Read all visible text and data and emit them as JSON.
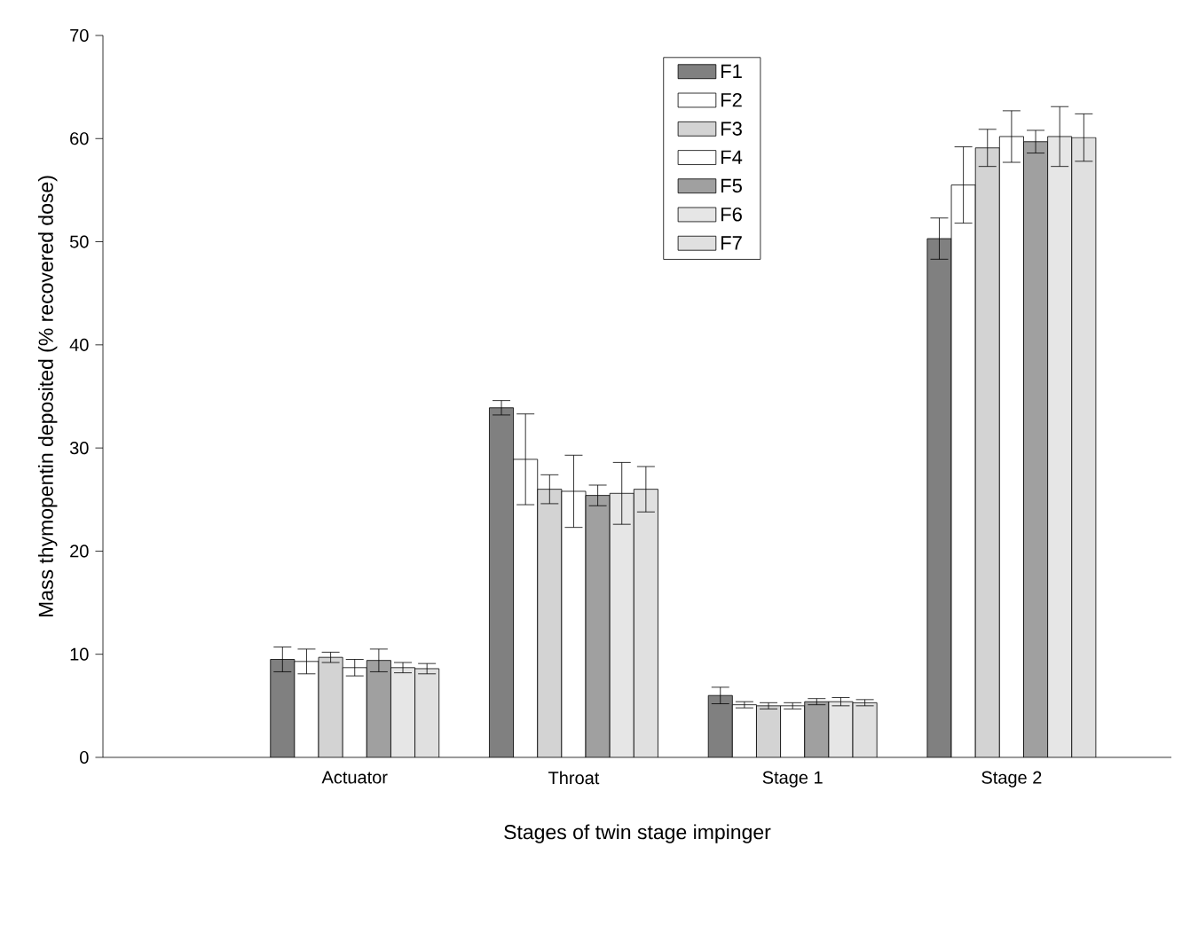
{
  "chart_data": {
    "type": "bar",
    "xlabel": "Stages of twin stage impinger",
    "ylabel": "Mass thymopentin deposited (% recovered dose)",
    "categories": [
      "Actuator",
      "Throat",
      "Stage 1",
      "Stage 2"
    ],
    "ylim": [
      0,
      70
    ],
    "yticks": [
      0,
      10,
      20,
      30,
      40,
      50,
      60,
      70
    ],
    "legend": "top",
    "grid": false,
    "series": [
      {
        "name": "F1",
        "color": "#808080",
        "values": [
          9.5,
          33.9,
          6.0,
          50.3
        ],
        "errors": [
          1.2,
          0.7,
          0.8,
          2.0
        ]
      },
      {
        "name": "F2",
        "color": "#ffffff",
        "values": [
          9.3,
          28.9,
          5.1,
          55.5
        ],
        "errors": [
          1.2,
          4.4,
          0.3,
          3.7
        ]
      },
      {
        "name": "F3",
        "color": "#d3d3d3",
        "values": [
          9.7,
          26.0,
          5.0,
          59.1
        ],
        "errors": [
          0.5,
          1.4,
          0.3,
          1.8
        ]
      },
      {
        "name": "F4",
        "color": "#ffffff",
        "values": [
          8.7,
          25.8,
          5.0,
          60.2
        ],
        "errors": [
          0.8,
          3.5,
          0.3,
          2.5
        ]
      },
      {
        "name": "F5",
        "color": "#a0a0a0",
        "values": [
          9.4,
          25.4,
          5.4,
          59.7
        ],
        "errors": [
          1.1,
          1.0,
          0.3,
          1.1
        ]
      },
      {
        "name": "F6",
        "color": "#e6e6e6",
        "values": [
          8.7,
          25.6,
          5.4,
          60.2
        ],
        "errors": [
          0.5,
          3.0,
          0.4,
          2.9
        ]
      },
      {
        "name": "F7",
        "color": "#e0e0e0",
        "values": [
          8.6,
          26.0,
          5.3,
          60.1
        ],
        "errors": [
          0.5,
          2.2,
          0.3,
          2.3
        ]
      }
    ]
  }
}
